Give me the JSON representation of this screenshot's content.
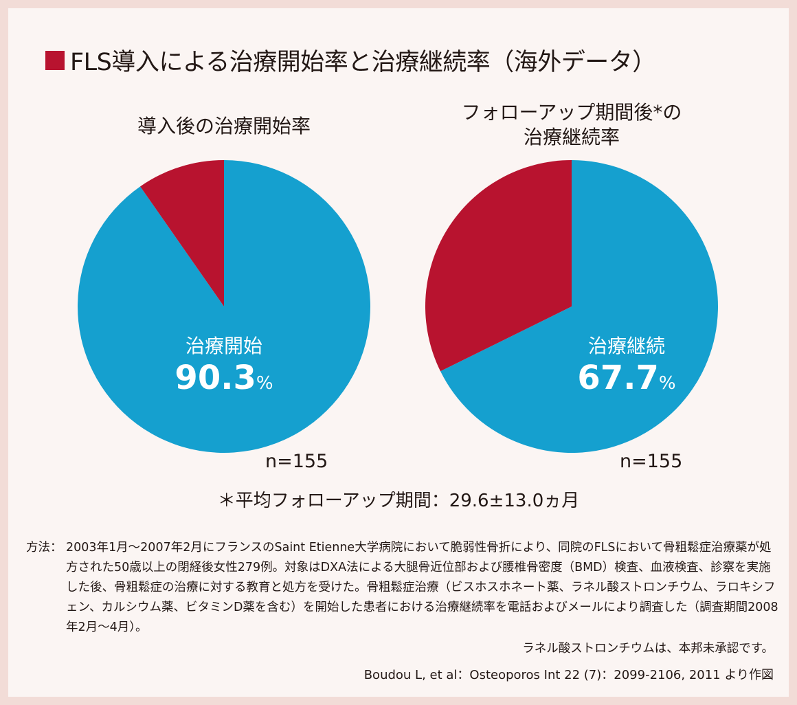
{
  "title": "FLS導入による治療開始率と治療継続率（海外データ）",
  "colors": {
    "positive": "#15a0cf",
    "negative": "#b8132f",
    "background": "#fbf5f3",
    "title_square": "#b8132f"
  },
  "chart_data": [
    {
      "type": "pie",
      "title": "導入後の治療開始率",
      "slices": [
        {
          "label": "治療開始",
          "value": 90.3
        },
        {
          "label": "",
          "value": 9.7
        }
      ],
      "value_text": "90.3",
      "unit": "%",
      "n_label": "n=155"
    },
    {
      "type": "pie",
      "title_line1": "フォローアップ期間後*の",
      "title_line2": "治療継続率",
      "slices": [
        {
          "label": "治療継続",
          "value": 67.7
        },
        {
          "label": "",
          "value": 32.3
        }
      ],
      "value_text": "67.7",
      "unit": "%",
      "n_label": "n=155"
    }
  ],
  "footnote": "＊平均フォローアップ期間：29.6±13.0ヵ月",
  "method_head": "方法：",
  "method_body": "2003年1月～2007年2月にフランスのSaint Etienne大学病院において脆弱性骨折により、同院のFLSにおいて骨粗鬆症治療薬が処方された50歳以上の閉経後女性279例。対象はDXA法による大腿骨近位部および腰椎骨密度（BMD）検査、血液検査、診察を実施した後、骨粗鬆症の治療に対する教育と処方を受けた。骨粗鬆症治療（ビスホスホネート薬、ラネル酸ストロンチウム、ラロキシフェン、カルシウム薬、ビタミンD薬を含む）を開始した患者における治療継続率を電話およびメールにより調査した（調査期間2008年2月～4月）。",
  "unapproved": "ラネル酸ストロンチウムは、本邦未承認です。",
  "reference": "Boudou L, et al：Osteoporos Int 22 (7)：2099-2106, 2011 より作図"
}
